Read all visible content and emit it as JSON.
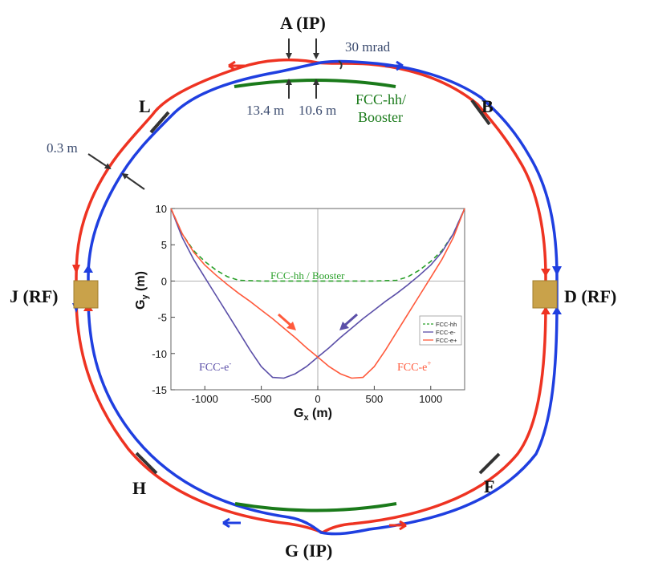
{
  "colors": {
    "ring_red": "#ee3322",
    "ring_blue": "#1f3fe0",
    "booster_green": "#1a7a1a",
    "pointer_dark": "#333333",
    "straight_dark": "#333333",
    "rf_cavity": "#c9a24a",
    "annotation_blue": "#3a4a6e",
    "text_black": "#111111",
    "plot_green": "#2aa02a",
    "plot_blue": "#5b4fa8",
    "plot_red": "#ff5a3c"
  },
  "labels": {
    "A": "A (IP)",
    "B": "B",
    "D": "D (RF)",
    "F": "F",
    "G": "G (IP)",
    "H": "H",
    "J": "J (RF)",
    "L": "L"
  },
  "annotations": {
    "mrad": "30 mrad",
    "gap_left": "13.4 m",
    "gap_right": "10.6 m",
    "separation": "0.3 m",
    "booster_line1": "FCC-hh/",
    "booster_line2": "Booster"
  },
  "chart_data": {
    "type": "line",
    "xlabel_main": "G",
    "xlabel_sub": "x",
    "xlabel_unit": " (m)",
    "ylabel_main": "G",
    "ylabel_sub": "y",
    "ylabel_unit": " (m)",
    "xlim": [
      -1300,
      1300
    ],
    "ylim": [
      -15,
      10
    ],
    "xticks": [
      -1000,
      -500,
      0,
      500,
      1000
    ],
    "yticks": [
      10,
      5,
      0,
      -5,
      -10,
      -15
    ],
    "xtick_labels": [
      "-1000",
      "-500",
      "0",
      "500",
      "1000"
    ],
    "ytick_labels": [
      "10",
      "5",
      "0",
      "-5",
      "-10",
      "-15"
    ],
    "grid": false,
    "legend_position": "bottom-right",
    "annotations": {
      "hh": "FCC-hh / Booster",
      "em_main": "FCC-e",
      "em_sup": "-",
      "ep_main": "FCC-e",
      "ep_sup": "+"
    },
    "series": [
      {
        "name": "FCC-hh",
        "style": "dashed",
        "x": [
          -1300,
          -1200,
          -1100,
          -1000,
          -900,
          -800,
          -700,
          -500,
          0,
          500,
          700,
          800,
          900,
          1000,
          1100,
          1200,
          1300
        ],
        "y": [
          10,
          6.5,
          4.2,
          2.7,
          1.5,
          0.6,
          0.1,
          0,
          0,
          0,
          0.1,
          0.6,
          1.5,
          2.7,
          4.2,
          6.5,
          10
        ]
      },
      {
        "name": "FCC-e-",
        "style": "solid",
        "x": [
          -1300,
          -1200,
          -1100,
          -1000,
          -900,
          -800,
          -700,
          -600,
          -500,
          -400,
          -300,
          -200,
          -100,
          0,
          100,
          200,
          300,
          400,
          500,
          600,
          700,
          800,
          900,
          1000,
          1100,
          1200,
          1300
        ],
        "y": [
          10,
          6,
          3,
          0.5,
          -2,
          -4.5,
          -7,
          -9.5,
          -11.8,
          -13.3,
          -13.4,
          -12.8,
          -11.8,
          -10.5,
          -9.2,
          -7.8,
          -6.5,
          -5.2,
          -4,
          -2.8,
          -1.7,
          -0.5,
          0.8,
          2.2,
          4,
          6.5,
          10
        ]
      },
      {
        "name": "FCC-e+",
        "style": "solid",
        "x": [
          -1300,
          -1200,
          -1100,
          -1000,
          -900,
          -800,
          -700,
          -600,
          -500,
          -400,
          -300,
          -200,
          -100,
          0,
          100,
          200,
          300,
          400,
          500,
          600,
          700,
          800,
          900,
          1000,
          1100,
          1200,
          1300
        ],
        "y": [
          10,
          6.5,
          4,
          2.2,
          0.8,
          -0.5,
          -1.7,
          -2.8,
          -4,
          -5.2,
          -6.5,
          -7.8,
          -9.2,
          -10.5,
          -11.8,
          -12.8,
          -13.4,
          -13.3,
          -11.8,
          -9.5,
          -7,
          -4.5,
          -2,
          0.5,
          3,
          6,
          10
        ]
      }
    ]
  }
}
